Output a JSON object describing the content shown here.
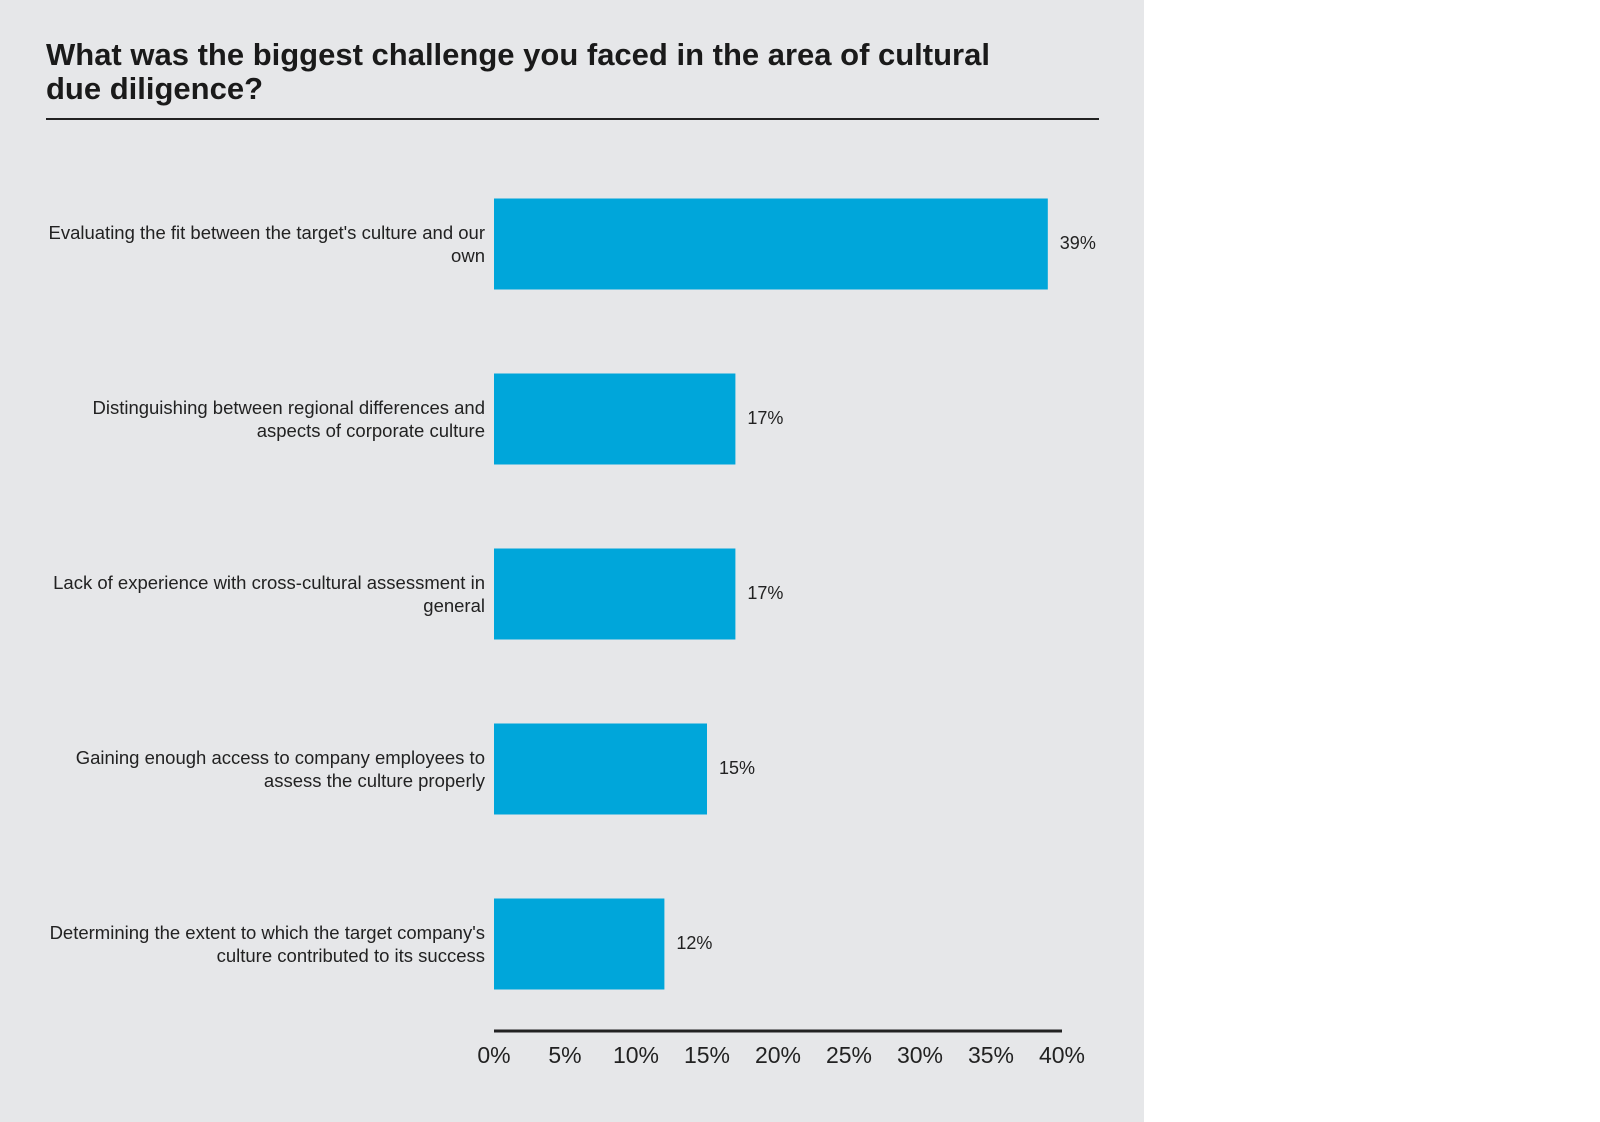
{
  "chart_data": {
    "type": "bar",
    "orientation": "horizontal",
    "title": "What was the biggest challenge you faced in the area of cultural due diligence?",
    "categories": [
      "Evaluating the fit between the target's culture and our own",
      "Distinguishing between regional differences and aspects of corporate culture",
      "Lack of experience with cross-cultural assessment in general",
      "Gaining enough access to company employees to assess the culture properly",
      "Determining the extent to which the target company's culture contributed to its success"
    ],
    "values": [
      39,
      17,
      17,
      15,
      12
    ],
    "value_labels": [
      "39%",
      "17%",
      "17%",
      "15%",
      "12%"
    ],
    "color": "#00a6da",
    "xlim": [
      0,
      40
    ],
    "xticks": [
      {
        "value": 0,
        "label": "0%"
      },
      {
        "value": 5,
        "label": "5%"
      },
      {
        "value": 10,
        "label": "10%"
      },
      {
        "value": 15,
        "label": "15%"
      },
      {
        "value": 20,
        "label": "20%"
      },
      {
        "value": 25,
        "label": "25%"
      },
      {
        "value": 30,
        "label": "30%"
      },
      {
        "value": 35,
        "label": "35%"
      },
      {
        "value": 40,
        "label": "40%"
      }
    ],
    "grid": false
  }
}
